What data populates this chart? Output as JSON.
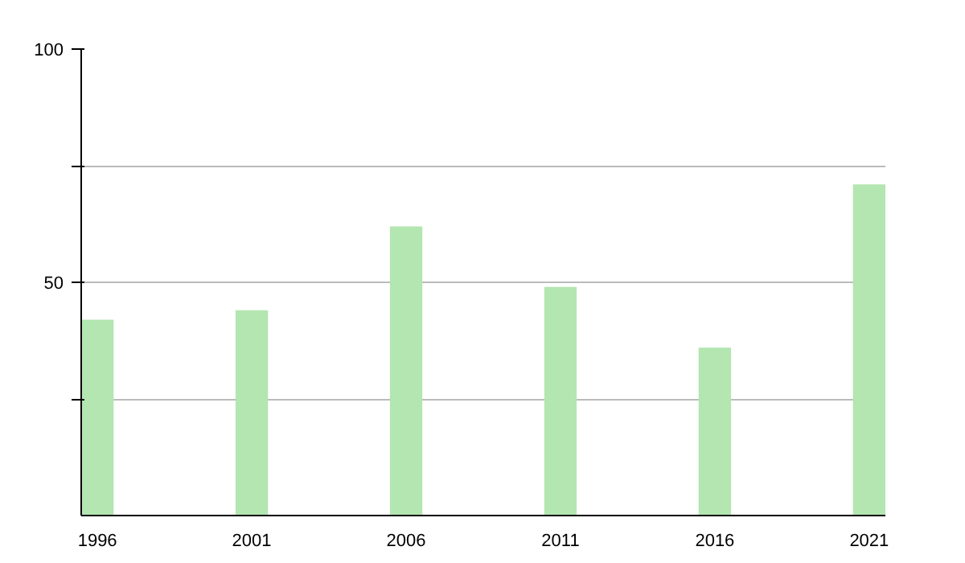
{
  "chart_data": {
    "type": "bar",
    "categories": [
      "1996",
      "2001",
      "2006",
      "2011",
      "2016",
      "2021"
    ],
    "values": [
      42,
      44,
      62,
      49,
      36,
      71
    ],
    "color": "#b3e6b0",
    "ylim": [
      0,
      100
    ],
    "yticks": [
      {
        "value": 25,
        "label": null
      },
      50,
      {
        "value": 75,
        "label": null
      },
      100
    ],
    "grid": "y"
  }
}
